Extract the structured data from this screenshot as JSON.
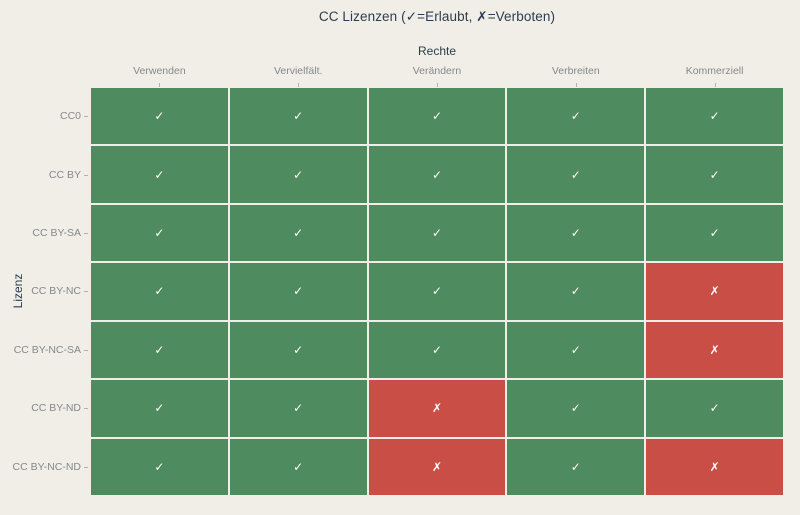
{
  "figure": {
    "title": "CC Lizenzen (✓=Erlaubt, ✗=Verboten)",
    "colors": {
      "background": "#f0eee7",
      "allowed": "#4e8b5e",
      "forbidden": "#c94f46",
      "title_text": "#2b3d4e",
      "tick_label_text": "#85898c",
      "tick_mark": "#aeb2b0",
      "cell_symbol": "#ffffff"
    }
  },
  "chart_data": {
    "type": "heatmap",
    "title": "CC Lizenzen (✓=Erlaubt, ✗=Verboten)",
    "xlabel": "Rechte",
    "ylabel": "Lizenz",
    "columns": [
      "Verwenden",
      "Vervielfält.",
      "Verändern",
      "Verbreiten",
      "Kommerziell"
    ],
    "rows": [
      "CC0",
      "CC BY",
      "CC BY-SA",
      "CC BY-NC",
      "CC BY-NC-SA",
      "CC BY-ND",
      "CC BY-NC-ND"
    ],
    "values": [
      [
        1,
        1,
        1,
        1,
        1
      ],
      [
        1,
        1,
        1,
        1,
        1
      ],
      [
        1,
        1,
        1,
        1,
        1
      ],
      [
        1,
        1,
        1,
        1,
        0
      ],
      [
        1,
        1,
        1,
        1,
        0
      ],
      [
        1,
        1,
        0,
        1,
        1
      ],
      [
        1,
        1,
        0,
        1,
        0
      ]
    ],
    "symbols": {
      "allowed": "✓",
      "forbidden": "✗"
    },
    "legend_meaning": {
      "allowed": "Erlaubt",
      "forbidden": "Verboten"
    },
    "grid": "2px gaps between cells, paper background shows through",
    "legend_position": "none (encoded in title)"
  }
}
